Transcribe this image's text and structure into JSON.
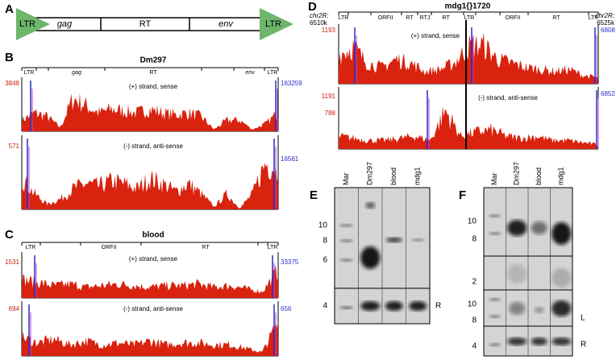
{
  "panel_a": {
    "label": "A",
    "segments": [
      "LTR",
      "gag",
      "RT",
      "env",
      "LTR"
    ]
  },
  "panel_b": {
    "label": "B",
    "title": "Dm297",
    "annotations": [
      "LTR",
      "gag",
      "RT",
      "env",
      "LTR"
    ],
    "tracks": [
      {
        "strand": "(+) strand, sense",
        "left_max": 3848,
        "right_max": 163259
      },
      {
        "strand": "(-) strand, anti-sense",
        "left_max": 571,
        "right_max": 16561
      }
    ]
  },
  "panel_c": {
    "label": "C",
    "title": "blood",
    "annotations": [
      "LTR",
      "ORFII",
      "RT",
      "LTR"
    ],
    "tracks": [
      {
        "strand": "(+) strand, sense",
        "left_max": 1531,
        "right_max": 33375
      },
      {
        "strand": "(-) strand, anti-sense",
        "left_max": 694,
        "right_max": 656
      }
    ]
  },
  "panel_d": {
    "label": "D",
    "title": "mdg1{}1720",
    "left_coord": [
      "chr2R:",
      "6510k"
    ],
    "right_coord": [
      "chr2R:",
      "6525k"
    ],
    "annotations": [
      "LTR",
      "ORFII",
      "RT",
      "RTJ",
      "RT",
      "LTR",
      "ORFII",
      "RT",
      "LTR"
    ],
    "tracks": [
      {
        "strand": "(+) strand, sense",
        "left_max": 1193,
        "right_max": 6808
      },
      {
        "strand": "(-) strand, anti-sense",
        "left_max": 1191,
        "left_mid": 788,
        "right_max": 6852
      }
    ]
  },
  "panel_e": {
    "label": "E",
    "lanes": [
      "Mar",
      "Dm297",
      "blood",
      "mdg1"
    ],
    "markers": [
      10,
      8,
      6,
      4
    ],
    "side_labels": [
      "R"
    ]
  },
  "panel_f": {
    "label": "F",
    "lanes": [
      "Mar",
      "Dm297",
      "blood",
      "mdg1"
    ],
    "markers": [
      10,
      8,
      2,
      10,
      8,
      4
    ],
    "side_labels": [
      "L",
      "R"
    ]
  }
}
